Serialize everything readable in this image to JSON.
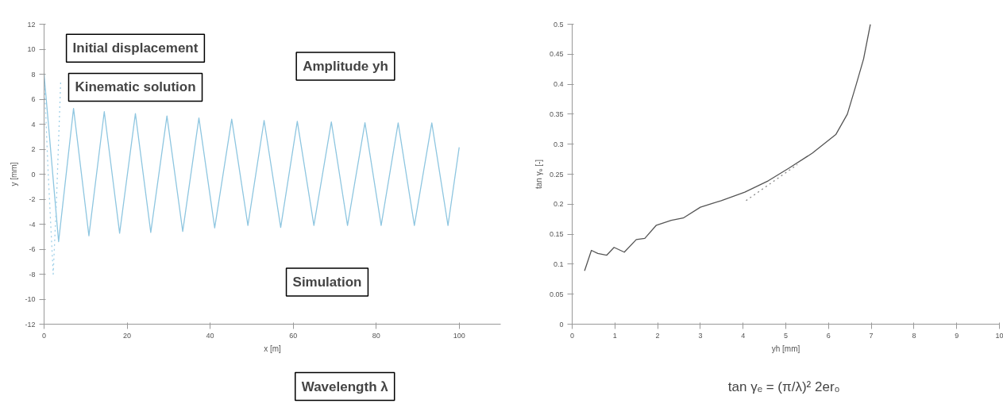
{
  "chart_data": [
    {
      "type": "line",
      "xlabel": "x [m]",
      "ylabel": "y [mm]",
      "xlim": [
        0,
        110
      ],
      "ylim": [
        -12,
        12
      ],
      "xticks": [
        0,
        20,
        40,
        60,
        80,
        100
      ],
      "yticks": [
        -12,
        -10,
        -8,
        -6,
        -4,
        -2,
        0,
        2,
        4,
        6,
        8,
        10,
        12
      ],
      "grid": false,
      "annotations": [
        "Initial displacement",
        "Kinematic solution",
        "Amplitude yh",
        "Simulation",
        "Wavelength λ"
      ],
      "series": [
        {
          "color": "#8ec6e0",
          "line_style": "solid",
          "x": [
            0,
            3.5,
            7.1,
            10.8,
            14.5,
            18.2,
            22.0,
            25.7,
            29.6,
            33.4,
            37.3,
            41.1,
            45.2,
            49.1,
            53.0,
            57.0,
            61.0,
            65.0,
            69.2,
            73.1,
            77.3,
            81.2,
            85.3,
            89.2,
            93.4,
            97.3,
            100
          ],
          "values": [
            8,
            -5.4,
            5.26,
            -4.93,
            5.0,
            -4.72,
            4.85,
            -4.66,
            4.66,
            -4.58,
            4.5,
            -4.3,
            4.4,
            -4.1,
            4.3,
            -4.26,
            4.23,
            -4.1,
            4.18,
            -4.1,
            4.12,
            -4.1,
            4.1,
            -4.1,
            4.1,
            -4.1,
            2.15
          ]
        },
        {
          "color": "#9fd0e8",
          "line_style": "dotted",
          "x": [
            0,
            1,
            2.2,
            3,
            4
          ],
          "values": [
            8,
            0,
            -8,
            -2,
            7.4
          ]
        }
      ]
    },
    {
      "type": "line",
      "xlabel": "yh [mm]",
      "ylabel": "tan γₑ [-]",
      "xlim": [
        0,
        10
      ],
      "ylim": [
        0,
        0.5
      ],
      "xticks": [
        0,
        1,
        2,
        3,
        4,
        5,
        6,
        7,
        8,
        9,
        10
      ],
      "yticks": [
        0,
        0.05,
        0.1,
        0.15,
        0.2,
        0.25,
        0.3,
        0.35,
        0.4,
        0.45,
        0.5
      ],
      "grid": false,
      "annotations": [
        "tan γₑ = (π/λ)² 2er₀"
      ],
      "series": [
        {
          "color": "#555555",
          "line_style": "solid",
          "x": [
            0.29,
            0.45,
            0.6,
            0.81,
            0.98,
            1.22,
            1.5,
            1.7,
            1.97,
            2.32,
            2.6,
            3.0,
            3.49,
            4.04,
            4.59,
            5.07,
            5.62,
            6.17,
            6.44,
            6.65,
            6.82,
            6.98
          ],
          "values": [
            0.089,
            0.123,
            0.118,
            0.115,
            0.128,
            0.12,
            0.141,
            0.143,
            0.165,
            0.173,
            0.177,
            0.195,
            0.206,
            0.22,
            0.239,
            0.26,
            0.285,
            0.316,
            0.35,
            0.4,
            0.442,
            0.5
          ]
        },
        {
          "color": "#888888",
          "line_style": "dotted",
          "x": [
            4.07,
            5.27
          ],
          "values": [
            0.206,
            0.266
          ]
        }
      ]
    }
  ]
}
